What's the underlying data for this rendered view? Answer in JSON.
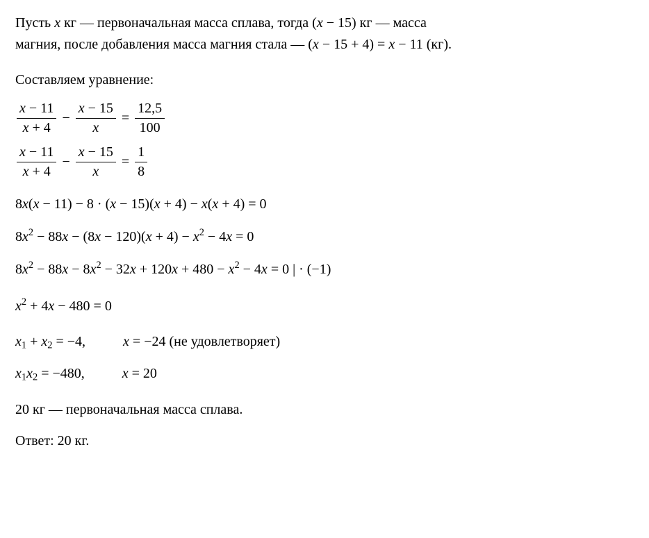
{
  "global": {
    "text_color": "#000000",
    "background_color": "#ffffff",
    "font_family": "Georgia, Times New Roman, serif",
    "base_font_size_pt": 15
  },
  "para1": {
    "t1": "Пусть ",
    "v1": "x",
    "t2": " кг — первоначальная масса сплава, тогда (",
    "v2": "x",
    "t3": " − 15) кг — масса",
    "t4": "магния, после добавления масса магния стала — (",
    "v3": "x",
    "t5": " − 15 + 4) = ",
    "v4": "x",
    "t6": " − 11 (кг)."
  },
  "para2": "Составляем уравнение:",
  "frac1": {
    "a_num_l": "x",
    "a_num_r": " − 11",
    "a_den_l": "x",
    "a_den_r": " + 4",
    "minus": "−",
    "b_num_l": "x",
    "b_num_r": " − 15",
    "b_den": "x",
    "eq": "=",
    "c_num": "12,5",
    "c_den": "100"
  },
  "frac2": {
    "a_num_l": "x",
    "a_num_r": " − 11",
    "a_den_l": "x",
    "a_den_r": " + 4",
    "minus": "−",
    "b_num_l": "x",
    "b_num_r": " − 15",
    "b_den": "x",
    "eq": "=",
    "c_num": "1",
    "c_den": "8"
  },
  "eq1": {
    "p1": "8",
    "v1": "x",
    "p2": "(",
    "v2": "x",
    "p3": " − 11) − 8 · (",
    "v3": "x",
    "p4": " − 15)(",
    "v4": "x",
    "p5": " + 4) − ",
    "v5": "x",
    "p6": "(",
    "v6": "x",
    "p7": " + 4) = 0"
  },
  "eq2": {
    "p1": "8",
    "v1": "x",
    "e1": "2",
    "p2": " − 88",
    "v2": "x",
    "p3": " − (8",
    "v3": "x",
    "p4": " − 120)(",
    "v4": "x",
    "p5": " + 4) − ",
    "v5": "x",
    "e2": "2",
    "p6": " − 4",
    "v6": "x",
    "p7": " = 0"
  },
  "eq3": {
    "p1": "8",
    "v1": "x",
    "e1": "2",
    "p2": " − 88",
    "v2": "x",
    "p3": " − 8",
    "v3": "x",
    "e2": "2",
    "p4": " − 32",
    "v4": "x",
    "p5": " + 120",
    "v5": "x",
    "p6": " + 480 − ",
    "v6": "x",
    "e3": "2",
    "p7": " − 4",
    "v7": "x",
    "p8": " = 0   | · (−1)"
  },
  "eq4": {
    "v1": "x",
    "e1": "2",
    "p1": " + 4",
    "v2": "x",
    "p2": " − 480 = 0"
  },
  "pairA_left": {
    "v1": "x",
    "s1": "1",
    "p1": " + ",
    "v2": "x",
    "s2": "2",
    "p2": " = −4,"
  },
  "pairA_right": {
    "v1": "x",
    "p1": " = −24 ",
    "note": "(не удовлетворяет)"
  },
  "pairB_left": {
    "v1": "x",
    "s1": "1",
    "v2": "x",
    "s2": "2",
    "p1": " = −480,"
  },
  "pairB_right": {
    "v1": "x",
    "p1": " = 20"
  },
  "concl1": "20 кг — первоначальная масса сплава.",
  "concl2": "Ответ: 20 кг."
}
